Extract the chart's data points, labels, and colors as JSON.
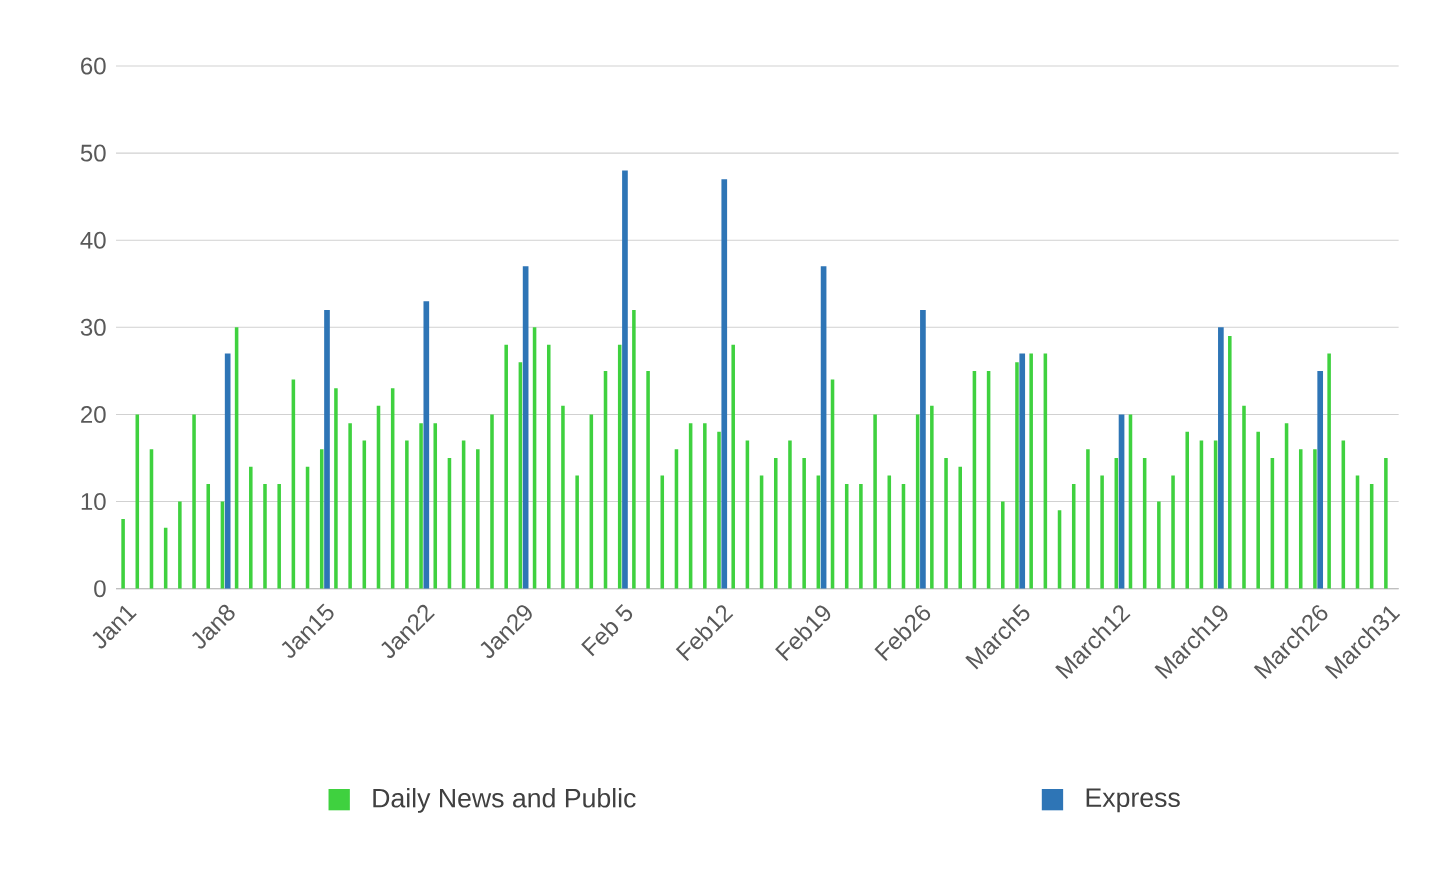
{
  "chart_data": {
    "type": "bar",
    "categories": [
      "Jan1",
      null,
      null,
      null,
      null,
      null,
      null,
      "Jan8",
      null,
      null,
      null,
      null,
      null,
      null,
      "Jan15",
      null,
      null,
      null,
      null,
      null,
      null,
      "Jan22",
      null,
      null,
      null,
      null,
      null,
      null,
      "Jan29",
      null,
      null,
      null,
      null,
      null,
      null,
      "Feb 5",
      null,
      null,
      null,
      null,
      null,
      null,
      "Feb12",
      null,
      null,
      null,
      null,
      null,
      null,
      "Feb19",
      null,
      null,
      null,
      null,
      null,
      null,
      "Feb26",
      null,
      null,
      null,
      null,
      null,
      null,
      "March5",
      null,
      null,
      null,
      null,
      null,
      null,
      "March12",
      null,
      null,
      null,
      null,
      null,
      null,
      "March19",
      null,
      null,
      null,
      null,
      null,
      null,
      "March26",
      null,
      null,
      null,
      null,
      "March31"
    ],
    "series": [
      {
        "name": "Daily News and Public",
        "color": "#3fd13f",
        "values": [
          8,
          20,
          16,
          7,
          10,
          20,
          12,
          10,
          30,
          14,
          12,
          12,
          24,
          14,
          16,
          23,
          19,
          17,
          21,
          23,
          17,
          19,
          19,
          15,
          17,
          16,
          20,
          28,
          26,
          30,
          28,
          21,
          13,
          20,
          25,
          28,
          32,
          25,
          13,
          16,
          19,
          19,
          18,
          28,
          17,
          13,
          15,
          17,
          15,
          13,
          24,
          12,
          12,
          20,
          13,
          12,
          20,
          21,
          15,
          14,
          25,
          25,
          10,
          26,
          27,
          27,
          9,
          12,
          16,
          13,
          15,
          20,
          15,
          10,
          13,
          18,
          17,
          17,
          29,
          21,
          18,
          15,
          19,
          16,
          16,
          27,
          17,
          13,
          12,
          15
        ]
      },
      {
        "name": "Express",
        "color": "#2e75b6",
        "values": [
          null,
          null,
          null,
          null,
          null,
          null,
          null,
          27,
          null,
          null,
          null,
          null,
          null,
          null,
          32,
          null,
          null,
          null,
          null,
          null,
          null,
          33,
          null,
          null,
          null,
          null,
          null,
          null,
          37,
          null,
          null,
          null,
          null,
          null,
          null,
          48,
          null,
          null,
          null,
          null,
          null,
          null,
          47,
          null,
          null,
          null,
          null,
          null,
          null,
          37,
          null,
          null,
          null,
          null,
          null,
          null,
          32,
          null,
          null,
          null,
          null,
          null,
          null,
          27,
          null,
          null,
          null,
          null,
          null,
          null,
          20,
          null,
          null,
          null,
          null,
          null,
          null,
          30,
          null,
          null,
          null,
          null,
          null,
          null,
          25,
          null,
          null,
          null,
          null,
          null
        ]
      }
    ],
    "ylim": [
      0,
      60
    ],
    "yticks": [
      0,
      10,
      20,
      30,
      40,
      50,
      60
    ],
    "grid": "y",
    "legend": "bottom"
  }
}
